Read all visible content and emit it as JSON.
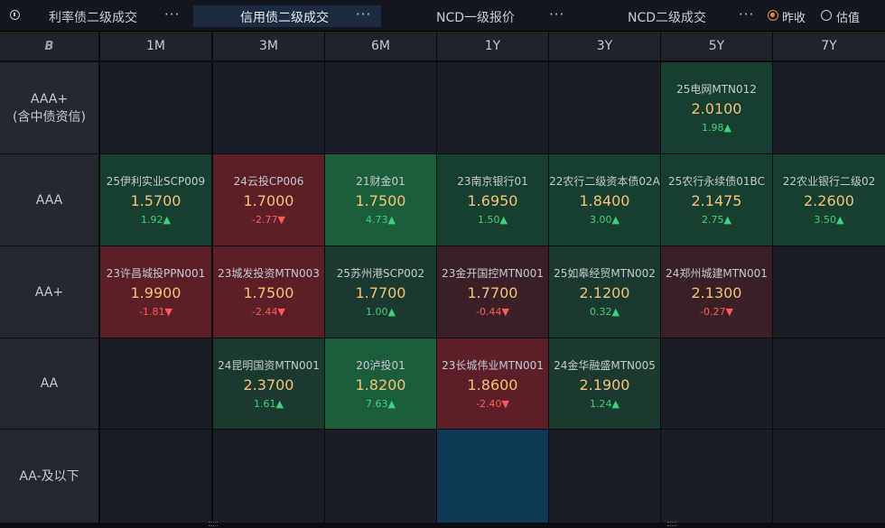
{
  "tabs": [
    {
      "label": "利率债二级成交",
      "more": "···"
    },
    {
      "label": "信用债二级成交",
      "more": "···"
    },
    {
      "label": "NCD一级报价",
      "more": "···"
    },
    {
      "label": "NCD二级成交",
      "more": "···"
    }
  ],
  "radio": {
    "selected": "昨收",
    "other": "估值"
  },
  "corner_logo": "B",
  "columns": [
    "1M",
    "3M",
    "6M",
    "1Y",
    "3Y",
    "5Y",
    "7Y"
  ],
  "rows": [
    {
      "label_line1": "AAA+",
      "label_line2": "(含中债资信)"
    },
    {
      "label_line1": "AAA",
      "label_line2": ""
    },
    {
      "label_line1": "AA+",
      "label_line2": ""
    },
    {
      "label_line1": "AA",
      "label_line2": ""
    },
    {
      "label_line1": "AA-及以下",
      "label_line2": ""
    }
  ],
  "cells": {
    "r0c5": {
      "name": "25电网MTN012",
      "value": "2.0100",
      "change": "1.98▲",
      "dir": "up",
      "color": "green"
    },
    "r1c0": {
      "name": "25伊利实业SCP009",
      "value": "1.5700",
      "change": "1.92▲",
      "dir": "up",
      "color": "green"
    },
    "r1c1": {
      "name": "24云投CP006",
      "value": "1.7000",
      "change": "-2.77▼",
      "dir": "dn",
      "color": "red"
    },
    "r1c2": {
      "name": "21财金01",
      "value": "1.7500",
      "change": "4.73▲",
      "dir": "up",
      "color": "lgreen"
    },
    "r1c3": {
      "name": "23南京银行01",
      "value": "1.6950",
      "change": "1.50▲",
      "dir": "up",
      "color": "green"
    },
    "r1c4": {
      "name": "22农行二级资本债02A",
      "value": "1.8400",
      "change": "3.00▲",
      "dir": "up",
      "color": "green"
    },
    "r1c5": {
      "name": "25农行永续债01BC",
      "value": "2.1475",
      "change": "2.75▲",
      "dir": "up",
      "color": "green"
    },
    "r1c6": {
      "name": "22农业银行二级02",
      "value": "2.2600",
      "change": "3.50▲",
      "dir": "up",
      "color": "green"
    },
    "r2c0": {
      "name": "23许昌城投PPN001",
      "value": "1.9900",
      "change": "-1.81▼",
      "dir": "dn",
      "color": "red"
    },
    "r2c1": {
      "name": "23城发投资MTN003",
      "value": "1.7500",
      "change": "-2.44▼",
      "dir": "dn",
      "color": "red"
    },
    "r2c2": {
      "name": "25苏州港SCP002",
      "value": "1.7700",
      "change": "1.00▲",
      "dir": "up",
      "color": "dgreen"
    },
    "r2c3": {
      "name": "23金开国控MTN001",
      "value": "1.7700",
      "change": "-0.44▼",
      "dir": "dn",
      "color": "dred"
    },
    "r2c4": {
      "name": "25如皋经贸MTN002",
      "value": "2.1200",
      "change": "0.32▲",
      "dir": "up",
      "color": "dgreen"
    },
    "r2c5": {
      "name": "24郑州城建MTN001",
      "value": "2.1300",
      "change": "-0.27▼",
      "dir": "dn",
      "color": "dred"
    },
    "r3c1": {
      "name": "24昆明国资MTN001",
      "value": "2.3700",
      "change": "1.61▲",
      "dir": "up",
      "color": "dgreen"
    },
    "r3c2": {
      "name": "20泸投01",
      "value": "1.8200",
      "change": "7.63▲",
      "dir": "up",
      "color": "lgreen"
    },
    "r3c3": {
      "name": "23长城伟业MTN001",
      "value": "1.8600",
      "change": "-2.40▼",
      "dir": "dn",
      "color": "red"
    },
    "r3c4": {
      "name": "24金华融盛MTN005",
      "value": "2.1900",
      "change": "1.24▲",
      "dir": "up",
      "color": "dgreen"
    },
    "r4c3": {
      "name": "",
      "value": "",
      "change": "",
      "dir": "",
      "color": "blue"
    }
  }
}
